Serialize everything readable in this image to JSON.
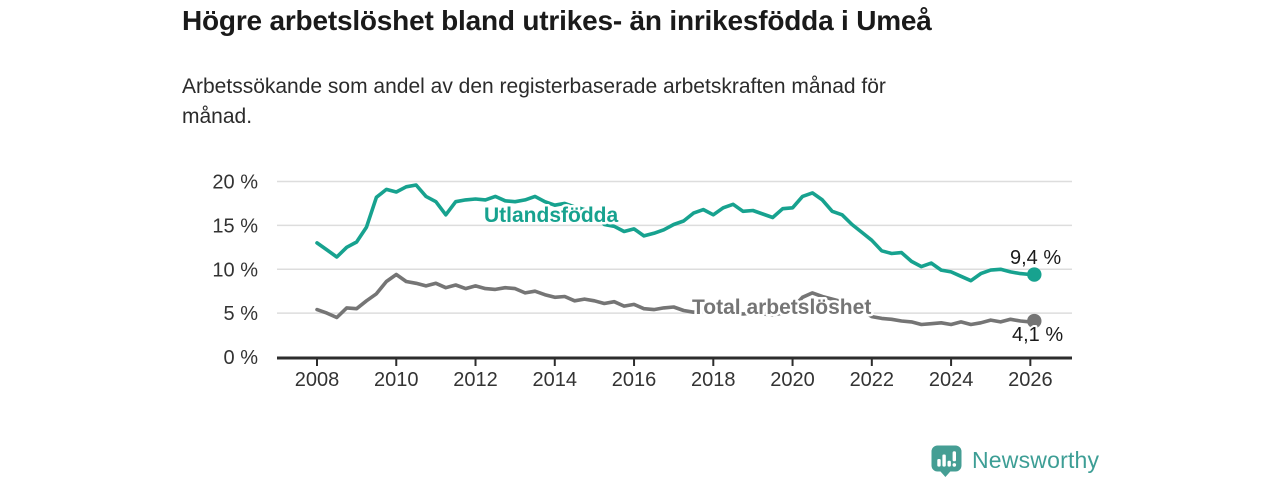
{
  "title": "Högre arbetslöshet bland utrikes- än inrikesfödda i Umeå",
  "subtitle": {
    "line1": "Arbetssökande som andel av den registerbaserade arbetskraften månad för",
    "line2": "månad."
  },
  "chart_data": {
    "type": "line",
    "title": "Högre arbetslöshet bland utrikes- än inrikesfödda i Umeå",
    "subtitle": "Arbetssökande som andel av den registerbaserade arbetskraften månad för månad.",
    "grid": true,
    "legend": "inline-labels",
    "x_axis": {
      "unit": "year",
      "range": [
        2007.0,
        2027.0
      ],
      "ticks": [
        2008,
        2010,
        2012,
        2014,
        2016,
        2018,
        2020,
        2022,
        2024,
        2026
      ],
      "tick_labels": [
        "2008",
        "2010",
        "2012",
        "2014",
        "2016",
        "2018",
        "2020",
        "2022",
        "2024",
        "2026"
      ]
    },
    "y_axis": {
      "unit": "%",
      "range": [
        0,
        20
      ],
      "ticks": [
        0,
        5,
        10,
        15,
        20
      ],
      "tick_labels": [
        "0 %",
        "5 %",
        "10 %",
        "15 %",
        "20 %"
      ]
    },
    "sampling": {
      "x_start": 2008.0,
      "x_step": 0.25,
      "x_end": 2026.1
    },
    "series": [
      {
        "id": "utlandsfodda",
        "label": "Utlandsfödda",
        "color": "#17a28f",
        "end_label": "9,4 %",
        "end_value": 9.4,
        "values": [
          13.0,
          12.2,
          11.4,
          12.5,
          13.1,
          14.8,
          18.2,
          19.1,
          18.8,
          19.4,
          19.6,
          18.3,
          17.7,
          16.2,
          17.7,
          17.9,
          18.0,
          17.9,
          18.3,
          17.8,
          17.7,
          17.9,
          18.3,
          17.7,
          17.3,
          17.5,
          17.1,
          16.8,
          16.5,
          15.1,
          14.9,
          14.3,
          14.6,
          13.8,
          14.1,
          14.5,
          15.1,
          15.5,
          16.4,
          16.8,
          16.2,
          17.0,
          17.4,
          16.6,
          16.7,
          16.3,
          15.9,
          16.9,
          17.0,
          18.3,
          18.7,
          17.9,
          16.6,
          16.2,
          15.1,
          14.2,
          13.3,
          12.1,
          11.8,
          11.9,
          10.9,
          10.3,
          10.7,
          9.9,
          9.7,
          9.2,
          8.7,
          9.5,
          9.9,
          10.0,
          9.7,
          9.5,
          9.4,
          9.4
        ]
      },
      {
        "id": "total-arbetsloshet",
        "label": "Total arbetslöshet",
        "color": "#757575",
        "end_label": "4,1 %",
        "end_value": 4.1,
        "values": [
          5.4,
          5.0,
          4.5,
          5.6,
          5.5,
          6.4,
          7.2,
          8.6,
          9.4,
          8.6,
          8.4,
          8.1,
          8.4,
          7.9,
          8.2,
          7.8,
          8.1,
          7.8,
          7.7,
          7.9,
          7.8,
          7.3,
          7.5,
          7.1,
          6.8,
          6.9,
          6.4,
          6.6,
          6.4,
          6.1,
          6.3,
          5.8,
          6.0,
          5.5,
          5.4,
          5.6,
          5.7,
          5.3,
          5.1,
          5.3,
          5.2,
          5.0,
          5.1,
          4.9,
          5.0,
          4.9,
          4.8,
          5.0,
          5.6,
          6.8,
          7.3,
          6.9,
          6.6,
          6.3,
          5.9,
          5.3,
          4.6,
          4.4,
          4.3,
          4.1,
          4.0,
          3.7,
          3.8,
          3.9,
          3.7,
          4.0,
          3.7,
          3.9,
          4.2,
          4.0,
          4.3,
          4.1,
          4.0,
          4.1
        ]
      }
    ],
    "colors": {
      "grid": "#dddddd",
      "axis": "#2d2d2d",
      "tick_text": "#333333"
    }
  },
  "branding": {
    "logo_text": "Newsworthy",
    "logo_color": "#3d9e95",
    "logo_icon": "newsworthy-chart-bubble-icon"
  }
}
